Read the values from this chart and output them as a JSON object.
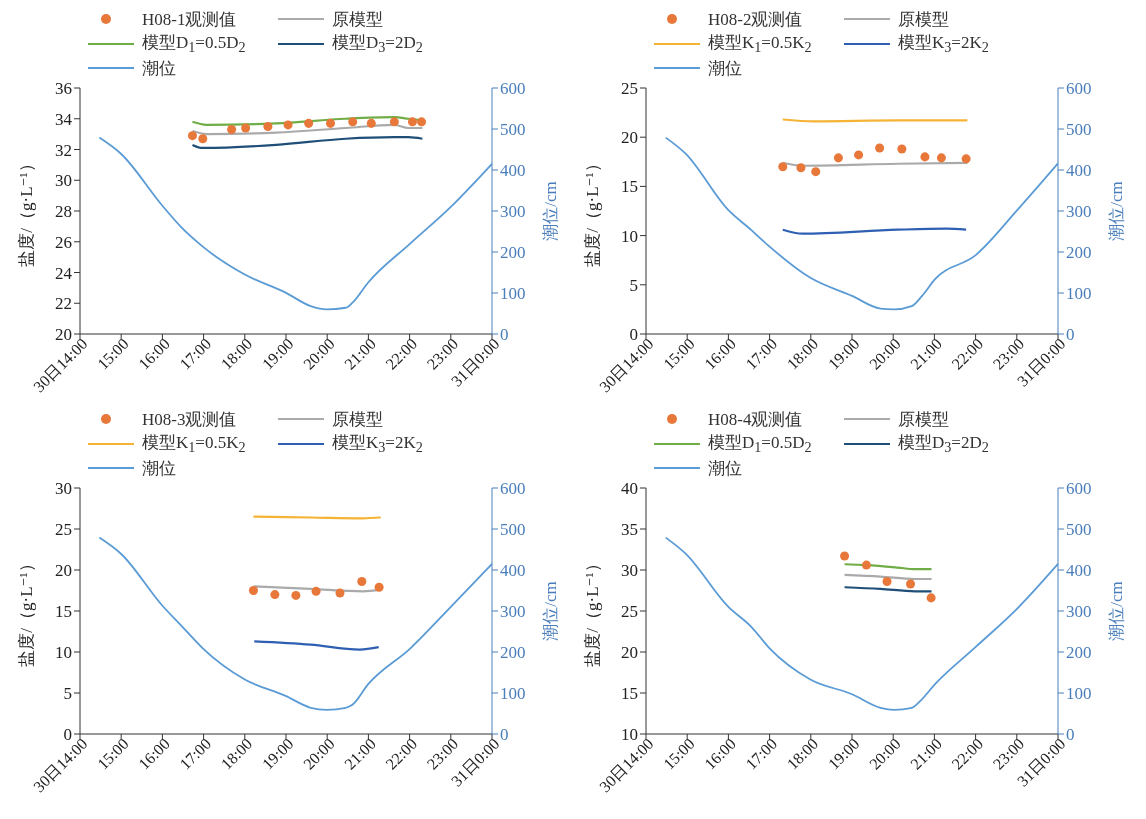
{
  "chart_data": [
    {
      "type": "line",
      "ylabel": "盐度/（g·L⁻¹）",
      "y2label": "潮位/cm",
      "legend": "top",
      "xlim": [
        14,
        24
      ],
      "xticks": [
        {
          "value": 14,
          "label": "30日14:00"
        },
        {
          "value": 15,
          "label": "15:00"
        },
        {
          "value": 16,
          "label": "16:00"
        },
        {
          "value": 17,
          "label": "17:00"
        },
        {
          "value": 18,
          "label": "18:00"
        },
        {
          "value": 19,
          "label": "19:00"
        },
        {
          "value": 20,
          "label": "20:00"
        },
        {
          "value": 21,
          "label": "21:00"
        },
        {
          "value": 22,
          "label": "22:00"
        },
        {
          "value": 23,
          "label": "23:00"
        },
        {
          "value": 24,
          "label": "31日0:00"
        }
      ],
      "ylim": [
        20,
        36
      ],
      "yticks": [
        20,
        22,
        24,
        26,
        28,
        30,
        32,
        34,
        36
      ],
      "y2lim": [
        0,
        600
      ],
      "y2ticks": [
        0,
        100,
        200,
        300,
        400,
        500,
        600
      ],
      "series": [
        {
          "name": "H08-1观测值",
          "type": "scatter",
          "marker": "circle",
          "color": "#e8773a",
          "x": [
            16.73,
            16.98,
            17.68,
            18.02,
            18.56,
            19.05,
            19.55,
            20.08,
            20.62,
            21.07,
            21.63,
            22.07,
            22.29
          ],
          "values": [
            32.9,
            32.7,
            33.3,
            33.4,
            33.5,
            33.6,
            33.7,
            33.7,
            33.8,
            33.7,
            33.8,
            33.8,
            33.8
          ]
        },
        {
          "name": "原模型",
          "color": "#aaaaaa",
          "x": [
            16.73,
            17.07,
            18.76,
            20.45,
            21.63,
            21.97,
            22.31
          ],
          "values": [
            33.2,
            33.0,
            33.1,
            33.4,
            33.6,
            33.4,
            33.4
          ]
        },
        {
          "name": "模型D$_{1}$=0.5D$_{2}$",
          "color": "#70ad47",
          "x": [
            16.73,
            17.07,
            18.76,
            20.45,
            21.63,
            21.97,
            22.31
          ],
          "values": [
            33.8,
            33.6,
            33.7,
            34.0,
            34.1,
            34.0,
            33.9
          ]
        },
        {
          "name": "模型D$_{3}$=2D$_{2}$",
          "color": "#1f4e79",
          "x": [
            16.73,
            16.98,
            18.76,
            20.45,
            21.63,
            21.97,
            22.31
          ],
          "values": [
            32.3,
            32.1,
            32.3,
            32.7,
            32.8,
            32.8,
            32.7
          ]
        },
        {
          "name": "潮位",
          "axis": "y2",
          "color": "#5b9bd5",
          "x": [
            14.47,
            15.0,
            15.99,
            16.48,
            16.98,
            18.0,
            18.99,
            19.6,
            19.99,
            20.45,
            20.62,
            20.99,
            22.02,
            23.0,
            24.0
          ],
          "values": [
            479,
            439,
            314,
            258,
            213,
            145,
            101,
            68,
            60,
            64,
            77,
            125,
            221,
            310,
            415
          ]
        }
      ]
    },
    {
      "type": "line",
      "ylabel": "盐度/（g·L⁻¹）",
      "y2label": "潮位/cm",
      "legend": "top",
      "xlim": [
        14,
        24
      ],
      "xticks": [
        {
          "value": 14,
          "label": "30日14:00"
        },
        {
          "value": 15,
          "label": "15:00"
        },
        {
          "value": 16,
          "label": "16:00"
        },
        {
          "value": 17,
          "label": "17:00"
        },
        {
          "value": 18,
          "label": "18:00"
        },
        {
          "value": 19,
          "label": "19:00"
        },
        {
          "value": 20,
          "label": "20:00"
        },
        {
          "value": 21,
          "label": "21:00"
        },
        {
          "value": 22,
          "label": "22:00"
        },
        {
          "value": 23,
          "label": "23:00"
        },
        {
          "value": 24,
          "label": "31日0:00"
        }
      ],
      "ylim": [
        0,
        25
      ],
      "yticks": [
        0,
        5,
        10,
        15,
        20,
        25
      ],
      "y2lim": [
        0,
        600
      ],
      "y2ticks": [
        0,
        100,
        200,
        300,
        400,
        500,
        600
      ],
      "series": [
        {
          "name": "H08-2观测值",
          "type": "scatter",
          "marker": "circle",
          "color": "#e8773a",
          "x": [
            17.32,
            17.76,
            18.12,
            18.67,
            19.16,
            19.67,
            20.21,
            20.77,
            21.17,
            21.77
          ],
          "values": [
            17.0,
            16.9,
            16.5,
            17.9,
            18.2,
            18.9,
            18.8,
            18.0,
            17.9,
            17.8
          ]
        },
        {
          "name": "原模型",
          "color": "#aaaaaa",
          "x": [
            17.32,
            17.8,
            20.11,
            21.8
          ],
          "values": [
            17.4,
            17.1,
            17.3,
            17.4
          ]
        },
        {
          "name": "模型K$_{1}$=0.5K$_{2}$",
          "color": "#f5b335",
          "x": [
            17.32,
            18.08,
            20.11,
            21.8
          ],
          "values": [
            21.8,
            21.6,
            21.7,
            21.7
          ]
        },
        {
          "name": "模型K$_{3}$=2K$_{2}$",
          "color": "#2f5fb3",
          "x": [
            17.32,
            17.8,
            20.11,
            21.29,
            21.77
          ],
          "values": [
            10.6,
            10.2,
            10.6,
            10.7,
            10.6
          ]
        },
        {
          "name": "潮位",
          "axis": "y2",
          "color": "#5b9bd5",
          "x": [
            14.48,
            14.95,
            16.0,
            16.55,
            17.0,
            17.99,
            19.0,
            19.69,
            20.02,
            20.45,
            20.7,
            21.01,
            22.01,
            23.01,
            24.0
          ],
          "values": [
            479,
            441,
            302,
            254,
            213,
            137,
            93,
            62,
            60,
            68,
            93,
            133,
            193,
            302,
            416
          ]
        }
      ]
    },
    {
      "type": "line",
      "ylabel": "盐度/（g·L⁻¹）",
      "y2label": "潮位/cm",
      "legend": "top",
      "xlim": [
        14,
        24
      ],
      "xticks": [
        {
          "value": 14,
          "label": "30日14:00"
        },
        {
          "value": 15,
          "label": "15:00"
        },
        {
          "value": 16,
          "label": "16:00"
        },
        {
          "value": 17,
          "label": "17:00"
        },
        {
          "value": 18,
          "label": "18:00"
        },
        {
          "value": 19,
          "label": "19:00"
        },
        {
          "value": 20,
          "label": "20:00"
        },
        {
          "value": 21,
          "label": "21:00"
        },
        {
          "value": 22,
          "label": "22:00"
        },
        {
          "value": 23,
          "label": "23:00"
        },
        {
          "value": 24,
          "label": "31日0:00"
        }
      ],
      "ylim": [
        0,
        30
      ],
      "yticks": [
        0,
        5,
        10,
        15,
        20,
        25,
        30
      ],
      "y2lim": [
        0,
        600
      ],
      "y2ticks": [
        0,
        100,
        200,
        300,
        400,
        500,
        600
      ],
      "series": [
        {
          "name": "H08-3观测值",
          "type": "scatter",
          "marker": "circle",
          "color": "#e8773a",
          "x": [
            18.21,
            18.73,
            19.24,
            19.73,
            20.31,
            20.84,
            21.26
          ],
          "values": [
            17.5,
            17.0,
            16.9,
            17.4,
            17.2,
            18.6,
            17.9
          ]
        },
        {
          "name": "原模型",
          "color": "#aaaaaa",
          "x": [
            18.21,
            19.6,
            20.87,
            21.3
          ],
          "values": [
            18.0,
            17.7,
            17.4,
            17.6
          ]
        },
        {
          "name": "模型K$_{1}$=0.5K$_{2}$",
          "color": "#f5b335",
          "x": [
            18.21,
            19.6,
            20.87,
            21.3
          ],
          "values": [
            26.5,
            26.4,
            26.3,
            26.4
          ]
        },
        {
          "name": "模型K$_{3}$=2K$_{2}$",
          "color": "#2f5fb3",
          "x": [
            18.23,
            19.6,
            20.79,
            21.25
          ],
          "values": [
            11.3,
            10.9,
            10.3,
            10.6
          ]
        },
        {
          "name": "潮位",
          "axis": "y2",
          "color": "#5b9bd5",
          "x": [
            14.47,
            15.0,
            15.99,
            16.48,
            16.98,
            18.0,
            18.99,
            19.6,
            19.99,
            20.45,
            20.62,
            20.99,
            22.02,
            23.0,
            24.0
          ],
          "values": [
            479,
            439,
            314,
            262,
            209,
            133,
            93,
            64,
            59,
            64,
            72,
            121,
            209,
            310,
            415
          ]
        }
      ]
    },
    {
      "type": "line",
      "ylabel": "盐度/（g·L⁻¹）",
      "y2label": "潮位/cm",
      "legend": "top",
      "xlim": [
        14,
        24
      ],
      "xticks": [
        {
          "value": 14,
          "label": "30日14:00"
        },
        {
          "value": 15,
          "label": "15:00"
        },
        {
          "value": 16,
          "label": "16:00"
        },
        {
          "value": 17,
          "label": "17:00"
        },
        {
          "value": 18,
          "label": "18:00"
        },
        {
          "value": 19,
          "label": "19:00"
        },
        {
          "value": 20,
          "label": "20:00"
        },
        {
          "value": 21,
          "label": "21:00"
        },
        {
          "value": 22,
          "label": "22:00"
        },
        {
          "value": 23,
          "label": "23:00"
        },
        {
          "value": 24,
          "label": "31日0:00"
        }
      ],
      "ylim": [
        10,
        40
      ],
      "yticks": [
        10,
        15,
        20,
        25,
        30,
        35,
        40
      ],
      "y2lim": [
        0,
        600
      ],
      "y2ticks": [
        0,
        100,
        200,
        300,
        400,
        500,
        600
      ],
      "series": [
        {
          "name": "H08-4观测值",
          "type": "scatter",
          "marker": "circle",
          "color": "#e8773a",
          "x": [
            18.82,
            19.35,
            19.85,
            20.42,
            20.92
          ],
          "values": [
            31.7,
            30.6,
            28.6,
            28.3,
            26.6
          ]
        },
        {
          "name": "原模型",
          "color": "#aaaaaa",
          "x": [
            18.82,
            19.69,
            20.53,
            20.93
          ],
          "values": [
            29.4,
            29.2,
            28.9,
            28.9
          ]
        },
        {
          "name": "模型D$_{1}$=0.5D$_{2}$",
          "color": "#70ad47",
          "x": [
            18.82,
            19.35,
            20.11,
            20.53,
            20.93
          ],
          "values": [
            30.7,
            30.6,
            30.3,
            30.1,
            30.1
          ]
        },
        {
          "name": "模型D$_{3}$=2D$_{2}$",
          "color": "#1f4e79",
          "x": [
            18.82,
            19.69,
            20.53,
            20.93
          ],
          "values": [
            27.9,
            27.7,
            27.4,
            27.4
          ]
        },
        {
          "name": "潮位",
          "axis": "y2",
          "color": "#5b9bd5",
          "x": [
            14.48,
            14.95,
            16.0,
            16.55,
            17.0,
            17.99,
            19.0,
            19.69,
            20.02,
            20.45,
            20.66,
            21.01,
            22.01,
            23.01,
            24.0
          ],
          "values": [
            479,
            441,
            310,
            262,
            209,
            133,
            97,
            64,
            59,
            64,
            81,
            121,
            213,
            306,
            415
          ]
        }
      ]
    }
  ]
}
